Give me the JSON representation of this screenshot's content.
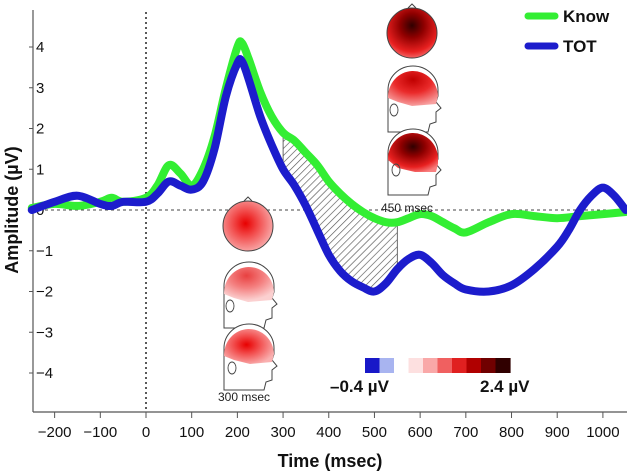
{
  "chart_data": {
    "type": "line",
    "title": "",
    "xlabel": "Time (msec)",
    "ylabel": "Amplitude (µV)",
    "xlim": [
      -250,
      1050
    ],
    "ylim": [
      -4.6,
      5.2
    ],
    "xticks": [
      -200,
      -100,
      0,
      100,
      200,
      300,
      400,
      500,
      600,
      700,
      800,
      900,
      1000
    ],
    "yticks": [
      4,
      3,
      2,
      1,
      0,
      -1,
      -2,
      -3,
      -4
    ],
    "grid": false,
    "legend_position": "top-right",
    "series": [
      {
        "name": "Know",
        "color": "#33ee33",
        "x": [
          -250,
          -200,
          -150,
          -100,
          -75,
          -50,
          0,
          25,
          50,
          75,
          100,
          125,
          150,
          175,
          200,
          210,
          225,
          250,
          275,
          300,
          325,
          350,
          375,
          400,
          425,
          450,
          475,
          500,
          525,
          550,
          575,
          600,
          625,
          650,
          675,
          700,
          750,
          800,
          850,
          900,
          950,
          1000,
          1050
        ],
        "y": [
          0.05,
          0.15,
          0.1,
          0.2,
          0.3,
          0.2,
          0.3,
          0.6,
          1.1,
          0.9,
          0.6,
          1.0,
          1.8,
          3.0,
          4.0,
          4.1,
          3.7,
          2.9,
          2.3,
          1.9,
          1.7,
          1.4,
          1.1,
          0.7,
          0.4,
          0.15,
          -0.05,
          -0.2,
          -0.3,
          -0.3,
          -0.2,
          -0.1,
          -0.15,
          -0.3,
          -0.45,
          -0.55,
          -0.3,
          -0.1,
          -0.15,
          -0.2,
          -0.15,
          -0.1,
          -0.05
        ]
      },
      {
        "name": "TOT",
        "color": "#1c1ccc",
        "x": [
          -250,
          -200,
          -150,
          -100,
          -75,
          -50,
          0,
          25,
          50,
          75,
          100,
          125,
          150,
          175,
          200,
          210,
          225,
          250,
          275,
          300,
          325,
          350,
          375,
          400,
          425,
          450,
          475,
          500,
          525,
          550,
          575,
          600,
          625,
          650,
          675,
          700,
          750,
          800,
          850,
          900,
          925,
          950,
          975,
          1000,
          1025,
          1050
        ],
        "y": [
          0.0,
          0.2,
          0.35,
          0.15,
          0.1,
          0.2,
          0.2,
          0.4,
          0.7,
          0.6,
          0.5,
          0.7,
          1.5,
          2.8,
          3.6,
          3.65,
          3.2,
          2.3,
          1.6,
          1.0,
          0.6,
          0.1,
          -0.5,
          -1.1,
          -1.5,
          -1.75,
          -1.9,
          -2.0,
          -1.8,
          -1.45,
          -1.2,
          -1.1,
          -1.3,
          -1.6,
          -1.8,
          -1.95,
          -2.0,
          -1.85,
          -1.45,
          -0.9,
          -0.5,
          0.0,
          0.35,
          0.55,
          0.35,
          0.0
        ]
      }
    ],
    "annotations": [
      {
        "text": "450 msec",
        "x": 450
      },
      {
        "text": "300 msec",
        "x": 300
      }
    ],
    "shaded_region": {
      "x_start": 300,
      "x_end": 550,
      "between": [
        "Know",
        "TOT"
      ]
    },
    "colorbar": {
      "min_label": "–0.4 µV",
      "max_label": "2.4 µV",
      "colors": [
        "#1818c8",
        "#a8b4f0",
        "#ffffff",
        "#fde0e0",
        "#f9a8a8",
        "#f06060",
        "#e02020",
        "#b00000",
        "#700000",
        "#300000"
      ]
    },
    "zero_line_style": "dashed",
    "onset_line_style": "dotted"
  }
}
